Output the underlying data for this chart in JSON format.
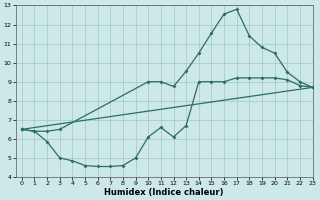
{
  "line1_x": [
    0,
    1,
    2,
    3,
    10,
    11,
    12,
    13,
    14,
    15,
    16,
    17,
    18,
    19,
    20,
    21,
    22,
    23
  ],
  "line1_y": [
    6.5,
    6.4,
    6.4,
    6.5,
    9.0,
    9.0,
    8.75,
    9.55,
    10.5,
    11.55,
    12.55,
    12.8,
    11.4,
    10.8,
    10.5,
    9.5,
    9.0,
    8.7
  ],
  "line2_x": [
    0,
    23
  ],
  "line2_y": [
    6.5,
    8.7
  ],
  "line3_x": [
    0,
    1,
    2,
    3,
    4,
    5,
    6,
    7,
    8,
    9,
    10,
    11,
    12,
    13,
    14,
    15,
    16,
    17,
    18,
    19,
    20,
    21,
    22,
    23
  ],
  "line3_y": [
    6.5,
    6.4,
    5.85,
    5.0,
    4.85,
    4.6,
    4.55,
    4.55,
    4.6,
    5.0,
    6.1,
    6.6,
    6.1,
    6.7,
    9.0,
    9.0,
    9.0,
    9.2,
    9.2,
    9.2,
    9.2,
    9.1,
    8.8,
    8.7
  ],
  "line_color": "#2d6e5e",
  "bg_color": "#cce8e8",
  "grid_color": "#a0c8c8",
  "xlabel": "Humidex (Indice chaleur)",
  "xlim": [
    -0.5,
    23
  ],
  "ylim": [
    4,
    13
  ],
  "xticks": [
    0,
    1,
    2,
    3,
    4,
    5,
    6,
    7,
    8,
    9,
    10,
    11,
    12,
    13,
    14,
    15,
    16,
    17,
    18,
    19,
    20,
    21,
    22,
    23
  ],
  "yticks": [
    4,
    5,
    6,
    7,
    8,
    9,
    10,
    11,
    12,
    13
  ]
}
